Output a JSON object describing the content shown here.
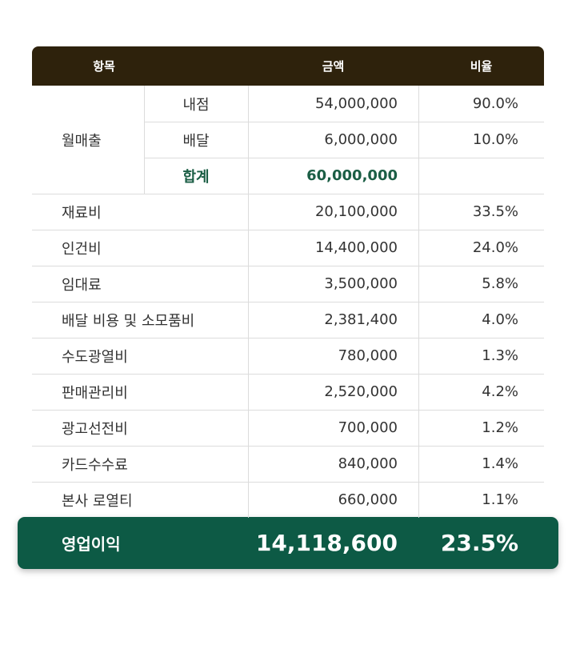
{
  "header": {
    "item": "항목",
    "amount": "금액",
    "ratio": "비율"
  },
  "monthly_sales": {
    "label": "월매출",
    "rows": [
      {
        "label": "내점",
        "amount": "54,000,000",
        "ratio": "90.0%"
      },
      {
        "label": "배달",
        "amount": "6,000,000",
        "ratio": "10.0%"
      },
      {
        "label": "합계",
        "amount": "60,000,000"
      }
    ]
  },
  "expenses": [
    {
      "label": "재료비",
      "amount": "20,100,000",
      "ratio": "33.5%"
    },
    {
      "label": "인건비",
      "amount": "14,400,000",
      "ratio": "24.0%"
    },
    {
      "label": "임대료",
      "amount": "3,500,000",
      "ratio": "5.8%"
    },
    {
      "label": "배달 비용 및 소모품비",
      "amount": "2,381,400",
      "ratio": "4.0%"
    },
    {
      "label": "수도광열비",
      "amount": "780,000",
      "ratio": "1.3%"
    },
    {
      "label": "판매관리비",
      "amount": "2,520,000",
      "ratio": "4.2%"
    },
    {
      "label": "광고선전비",
      "amount": "700,000",
      "ratio": "1.2%"
    },
    {
      "label": "카드수수료",
      "amount": "840,000",
      "ratio": "1.4%"
    },
    {
      "label": "본사 로열티",
      "amount": "660,000",
      "ratio": "1.1%"
    }
  ],
  "operating_profit": {
    "label": "영업이익",
    "amount": "14,118,600",
    "ratio": "23.5%"
  }
}
